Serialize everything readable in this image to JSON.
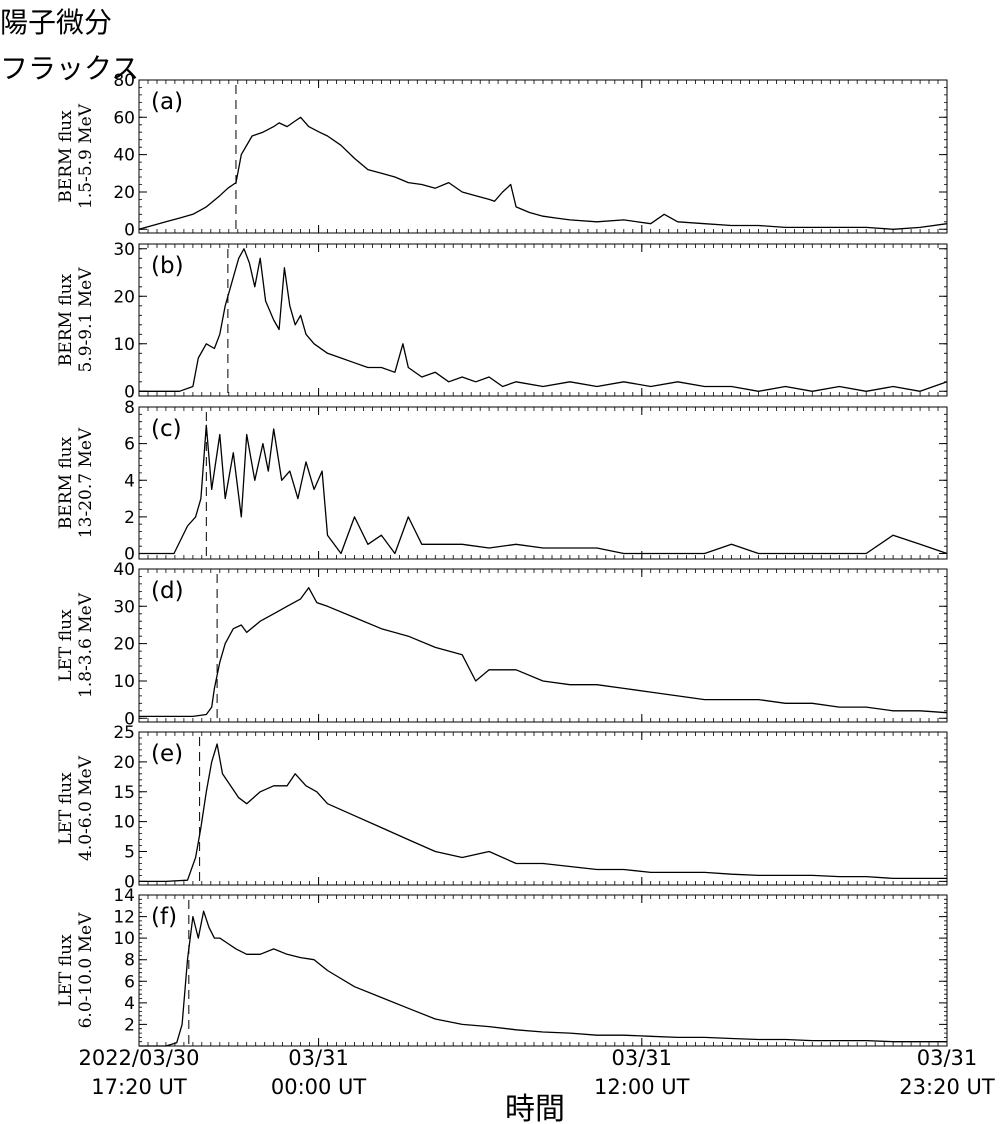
{
  "title_lines": [
    "陽子微分",
    "フラックス"
  ],
  "xlabel": "時間",
  "x_tick_labels": [
    {
      "x": 0,
      "line1": "2022/03/30",
      "line2": "17:20 UT"
    },
    {
      "x": 6.667,
      "line1": "03/31",
      "line2": "00:00 UT"
    },
    {
      "x": 18.667,
      "line1": "03/31",
      "line2": "12:00 UT"
    },
    {
      "x": 30,
      "line1": "03/31",
      "line2": "23:20 UT"
    }
  ],
  "chart_data": [
    {
      "type": "line",
      "panel": "(a)",
      "ylabel_lines": [
        "BERM flux",
        "1.5-5.9 MeV"
      ],
      "ylim": [
        -2,
        80
      ],
      "yticks": [
        0,
        20,
        40,
        60,
        80
      ],
      "onset_x": 3.6,
      "xlim": [
        0,
        30
      ],
      "x_unit": "hours since 2022/03/30 17:20 UT",
      "x": [
        0,
        0.5,
        1,
        1.5,
        2,
        2.5,
        3,
        3.3,
        3.6,
        3.8,
        4.2,
        4.6,
        5,
        5.2,
        5.5,
        5.8,
        6,
        6.3,
        6.7,
        7,
        7.5,
        8,
        8.5,
        9,
        9.5,
        10,
        10.5,
        11,
        11.5,
        12,
        12.5,
        13,
        13.2,
        13.5,
        13.8,
        14,
        14.5,
        15,
        15.5,
        16,
        17,
        18,
        19,
        19.5,
        20,
        21,
        22,
        23,
        24,
        25,
        26,
        27,
        28,
        29,
        30
      ],
      "y": [
        0,
        2,
        4,
        6,
        8,
        12,
        18,
        22,
        25,
        40,
        50,
        52,
        55,
        57,
        55,
        58,
        60,
        55,
        52,
        50,
        45,
        38,
        32,
        30,
        28,
        25,
        24,
        22,
        25,
        20,
        18,
        16,
        15,
        20,
        24,
        12,
        9,
        7,
        6,
        5,
        4,
        5,
        3,
        8,
        4,
        3,
        2,
        2,
        1,
        1,
        1,
        1,
        0,
        1,
        3
      ]
    },
    {
      "type": "line",
      "panel": "(b)",
      "ylabel_lines": [
        "BERM flux",
        "5.9-9.1 MeV"
      ],
      "ylim": [
        -1,
        31
      ],
      "yticks": [
        0,
        10,
        20,
        30
      ],
      "onset_x": 3.3,
      "xlim": [
        0,
        30
      ],
      "x": [
        0,
        0.5,
        1,
        1.5,
        2,
        2.2,
        2.5,
        2.8,
        3,
        3.2,
        3.5,
        3.7,
        3.9,
        4.1,
        4.3,
        4.5,
        4.7,
        5,
        5.2,
        5.4,
        5.6,
        5.8,
        6,
        6.2,
        6.5,
        7,
        7.5,
        8,
        8.5,
        9,
        9.5,
        9.8,
        10,
        10.5,
        11,
        11.5,
        12,
        12.5,
        13,
        13.5,
        14,
        15,
        16,
        17,
        18,
        19,
        20,
        21,
        22,
        23,
        24,
        25,
        26,
        27,
        28,
        29,
        30
      ],
      "y": [
        0,
        0,
        0,
        0,
        1,
        7,
        10,
        9,
        12,
        18,
        24,
        28,
        30,
        27,
        22,
        28,
        19,
        15,
        13,
        26,
        18,
        14,
        16,
        12,
        10,
        8,
        7,
        6,
        5,
        5,
        4,
        10,
        5,
        3,
        4,
        2,
        3,
        2,
        3,
        1,
        2,
        1,
        2,
        1,
        2,
        1,
        2,
        1,
        1,
        0,
        1,
        0,
        1,
        0,
        1,
        0,
        2
      ]
    },
    {
      "type": "line",
      "panel": "(c)",
      "ylabel_lines": [
        "BERM flux",
        "13-20.7 MeV"
      ],
      "ylim": [
        -0.3,
        8
      ],
      "yticks": [
        0,
        2,
        4,
        6,
        8
      ],
      "onset_x": 2.5,
      "xlim": [
        0,
        30
      ],
      "x": [
        0,
        0.5,
        1,
        1.3,
        1.8,
        2.1,
        2.3,
        2.5,
        2.7,
        3,
        3.2,
        3.5,
        3.8,
        4,
        4.3,
        4.6,
        4.8,
        5,
        5.3,
        5.6,
        5.9,
        6.2,
        6.5,
        6.8,
        7,
        7.5,
        8,
        8.5,
        9,
        9.5,
        10,
        10.5,
        11,
        12,
        13,
        14,
        15,
        16,
        17,
        18,
        19,
        20,
        21,
        22,
        23,
        24,
        25,
        26,
        27,
        28,
        29,
        30
      ],
      "y": [
        0,
        0,
        0,
        0,
        1.5,
        2,
        3,
        7,
        3.5,
        6.5,
        3,
        5.5,
        2,
        6.5,
        4,
        6,
        4.5,
        6.8,
        4,
        4.5,
        3,
        5,
        3.5,
        4.5,
        1,
        0,
        2,
        0.5,
        1,
        0,
        2,
        0.5,
        0.5,
        0.5,
        0.3,
        0.5,
        0.3,
        0.3,
        0.3,
        0,
        0,
        0,
        0,
        0.5,
        0,
        0,
        0,
        0,
        0,
        1,
        0.5,
        0
      ]
    },
    {
      "type": "line",
      "panel": "(d)",
      "ylabel_lines": [
        "LET flux",
        "1.8-3.6 MeV"
      ],
      "ylim": [
        -1,
        40
      ],
      "yticks": [
        0,
        10,
        20,
        30,
        40
      ],
      "onset_x": 2.9,
      "xlim": [
        0,
        30
      ],
      "x": [
        0,
        1,
        2,
        2.5,
        2.7,
        2.8,
        3,
        3.2,
        3.5,
        3.8,
        4,
        4.5,
        5,
        5.5,
        6,
        6.3,
        6.6,
        7,
        8,
        9,
        10,
        11,
        12,
        12.5,
        13,
        14,
        15,
        16,
        17,
        18,
        19,
        20,
        21,
        22,
        23,
        24,
        25,
        26,
        27,
        28,
        29,
        30
      ],
      "y": [
        0.5,
        0.5,
        0.5,
        1,
        3,
        8,
        15,
        20,
        24,
        25,
        23,
        26,
        28,
        30,
        32,
        35,
        31,
        30,
        27,
        24,
        22,
        19,
        17,
        10,
        13,
        13,
        10,
        9,
        9,
        8,
        7,
        6,
        5,
        5,
        5,
        4,
        4,
        3,
        3,
        2,
        2,
        1.5
      ]
    },
    {
      "type": "line",
      "panel": "(e)",
      "ylabel_lines": [
        "LET flux",
        "4.0-6.0 MeV"
      ],
      "ylim": [
        -0.6,
        25
      ],
      "yticks": [
        0,
        5,
        10,
        15,
        20,
        25
      ],
      "onset_x": 2.25,
      "xlim": [
        0,
        30
      ],
      "x": [
        0,
        1,
        1.8,
        2.1,
        2.3,
        2.5,
        2.7,
        2.9,
        3.1,
        3.4,
        3.7,
        4,
        4.5,
        5,
        5.5,
        5.8,
        6.2,
        6.6,
        7,
        8,
        9,
        10,
        11,
        12,
        13,
        14,
        15,
        16,
        17,
        18,
        19,
        20,
        21,
        22,
        23,
        24,
        25,
        26,
        27,
        28,
        29,
        30
      ],
      "y": [
        0,
        0,
        0.2,
        4,
        9,
        15,
        20,
        23,
        18,
        16,
        14,
        13,
        15,
        16,
        16,
        18,
        16,
        15,
        13,
        11,
        9,
        7,
        5,
        4,
        5,
        3,
        3,
        2.5,
        2,
        2,
        1.5,
        1.5,
        1.5,
        1.2,
        1,
        1,
        1,
        0.8,
        0.8,
        0.5,
        0.5,
        0.5
      ]
    },
    {
      "type": "line",
      "panel": "(f)",
      "ylabel_lines": [
        "LET flux",
        "6.0-10.0 MeV"
      ],
      "ylim": [
        0,
        14
      ],
      "yticks": [
        2,
        4,
        6,
        8,
        10,
        12,
        14
      ],
      "onset_x": 1.85,
      "xlim": [
        0,
        30
      ],
      "x": [
        0,
        1,
        1.4,
        1.6,
        1.8,
        2,
        2.2,
        2.4,
        2.6,
        2.8,
        3,
        3.3,
        3.6,
        4,
        4.5,
        5,
        5.5,
        6,
        6.5,
        7,
        8,
        9,
        10,
        11,
        12,
        13,
        14,
        15,
        16,
        17,
        18,
        19,
        20,
        21,
        22,
        23,
        24,
        25,
        26,
        27,
        28,
        29,
        30
      ],
      "y": [
        0,
        0,
        0.3,
        2,
        8,
        12,
        10,
        12.5,
        11,
        10,
        10,
        9.5,
        9,
        8.5,
        8.5,
        9,
        8.5,
        8.2,
        8,
        7,
        5.5,
        4.5,
        3.5,
        2.5,
        2,
        1.8,
        1.5,
        1.3,
        1.2,
        1,
        1,
        0.9,
        0.8,
        0.8,
        0.7,
        0.6,
        0.6,
        0.5,
        0.5,
        0.5,
        0.4,
        0.4,
        0.4
      ]
    }
  ]
}
